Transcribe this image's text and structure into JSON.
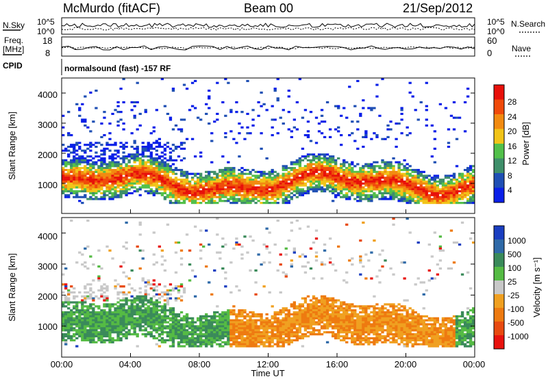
{
  "header": {
    "station": "McMurdo (fitACF)",
    "beam": "Beam 00",
    "date": "21/Sep/2012"
  },
  "top_panels": {
    "nsky_label": "N.Sky",
    "nsearch_label": "N.Search",
    "nsky_ticks": [
      "10^5",
      "10^0"
    ],
    "nsearch_ticks": [
      "10^5",
      "10^0"
    ],
    "freq_label_1": "Freq.",
    "freq_label_2": "[MHz]",
    "freq_ticks": [
      "18",
      "8"
    ],
    "nave_label": "Nave",
    "nave_ticks": [
      "60",
      "0"
    ],
    "cpid_label": "CPID",
    "cpid_text": "normalsound (fast) -157 RF"
  },
  "colors": {
    "power": [
      "#0a1fe8",
      "#1f4fb4",
      "#3f8f6a",
      "#52c04a",
      "#f2c418",
      "#f28a10",
      "#f04a0a",
      "#e8100a"
    ],
    "velocity": [
      "#1a3ec0",
      "#2f6aa8",
      "#3a8a5a",
      "#55bb44",
      "#c8c8c8",
      "#f0a020",
      "#ee7a10",
      "#e84a10",
      "#e8120e"
    ]
  },
  "chart_data": [
    {
      "type": "heatmap",
      "name": "Power",
      "ylabel": "Slant Range [km]",
      "ylim": [
        0,
        4500
      ],
      "yticks": [
        "1000",
        "2000",
        "3000",
        "4000"
      ],
      "xlim": [
        "00:00",
        "24:00"
      ],
      "colorbar_label": "Power [dB]",
      "colorbar_ticks": [
        "4",
        "8",
        "12",
        "16",
        "20",
        "24",
        "28"
      ],
      "scale_range": [
        0,
        32
      ]
    },
    {
      "type": "heatmap",
      "name": "Velocity",
      "ylabel": "Slant Range [km]",
      "ylim": [
        0,
        4500
      ],
      "yticks": [
        "1000",
        "2000",
        "3000",
        "4000"
      ],
      "xlim": [
        "00:00",
        "24:00"
      ],
      "colorbar_label": "Velocity [m s⁻¹]",
      "colorbar_ticks": [
        "1000",
        "500",
        "100",
        "25",
        "-25",
        "-100",
        "-500",
        "-1000"
      ],
      "xticks": [
        "00:00",
        "04:00",
        "08:00",
        "12:00",
        "16:00",
        "20:00",
        "00:00"
      ],
      "xlabel": "Time UT"
    }
  ]
}
